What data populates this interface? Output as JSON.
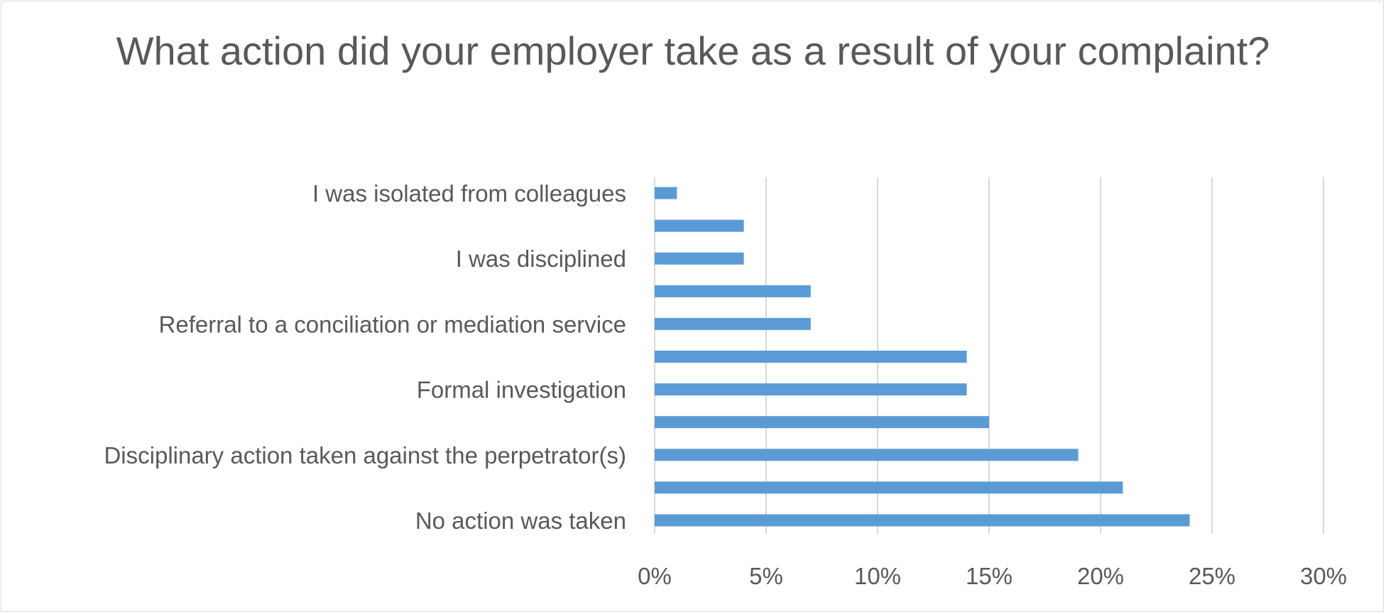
{
  "chart_data": {
    "type": "bar",
    "orientation": "horizontal",
    "title": "What action did your employer take as a result of your complaint?",
    "categories": [
      "No action was taken",
      "",
      "Disciplinary action taken against the perpetrator(s)",
      "",
      "Formal investigation",
      "",
      "Referral to a conciliation or mediation service",
      "",
      "I was disciplined",
      "",
      "I was isolated from colleagues"
    ],
    "values": [
      24,
      21,
      19,
      15,
      14,
      14,
      7,
      7,
      4,
      4,
      1
    ],
    "unit": "%",
    "xlim": [
      0,
      30
    ],
    "ticks": [
      "0%",
      "5%",
      "10%",
      "15%",
      "20%",
      "25%",
      "30%"
    ],
    "tick_values": [
      0,
      5,
      10,
      15,
      20,
      25,
      30
    ],
    "grid": true,
    "legend": "none",
    "colors": {
      "bar": "#5b9bd5",
      "grid": "#d9d9d9",
      "text": "#595959"
    }
  }
}
